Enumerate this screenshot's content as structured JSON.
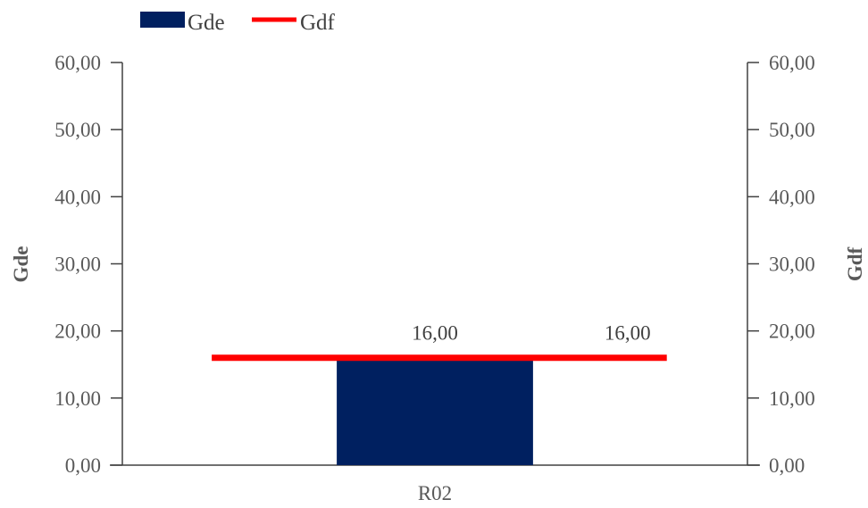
{
  "chart_data": {
    "type": "bar",
    "categories": [
      "R02"
    ],
    "series": [
      {
        "name": "Gde",
        "kind": "bar",
        "axis": "left",
        "values": [
          16.0
        ],
        "color": "#002060"
      },
      {
        "name": "Gdf",
        "kind": "line",
        "axis": "right",
        "values": [
          16.0
        ],
        "color": "#ff0000"
      }
    ],
    "data_labels": [
      "16,00",
      "16,00"
    ],
    "ylabel": "Gde",
    "y2label": "Gdf",
    "ylim": [
      0,
      60
    ],
    "y2lim": [
      0,
      60
    ],
    "yticks": [
      "0,00",
      "10,00",
      "20,00",
      "30,00",
      "40,00",
      "50,00",
      "60,00"
    ],
    "y2ticks": [
      "0,00",
      "10,00",
      "20,00",
      "30,00",
      "40,00",
      "50,00",
      "60,00"
    ],
    "grid": false,
    "legend_position": "top-left"
  }
}
